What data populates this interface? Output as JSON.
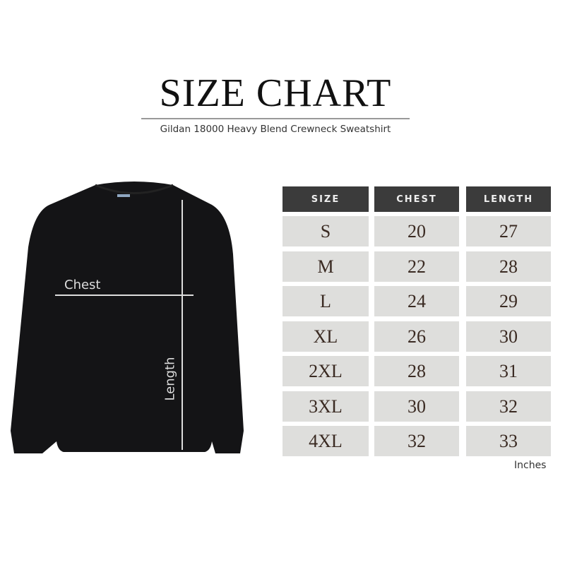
{
  "title": "SIZE CHART",
  "subtitle": "Gildan 18000 Heavy Blend Crewneck Sweatshirt",
  "diagram": {
    "chest_label": "Chest",
    "length_label": "Length"
  },
  "table": {
    "headers": [
      "SIZE",
      "CHEST",
      "LENGTH"
    ],
    "rows": [
      [
        "S",
        "20",
        "27"
      ],
      [
        "M",
        "22",
        "28"
      ],
      [
        "L",
        "24",
        "29"
      ],
      [
        "XL",
        "26",
        "30"
      ],
      [
        "2XL",
        "28",
        "31"
      ],
      [
        "3XL",
        "30",
        "32"
      ],
      [
        "4XL",
        "32",
        "33"
      ]
    ],
    "unit": "Inches"
  },
  "colors": {
    "header_bg": "#3b3b3b",
    "cell_bg": "#dededc",
    "garment": "#141416"
  }
}
